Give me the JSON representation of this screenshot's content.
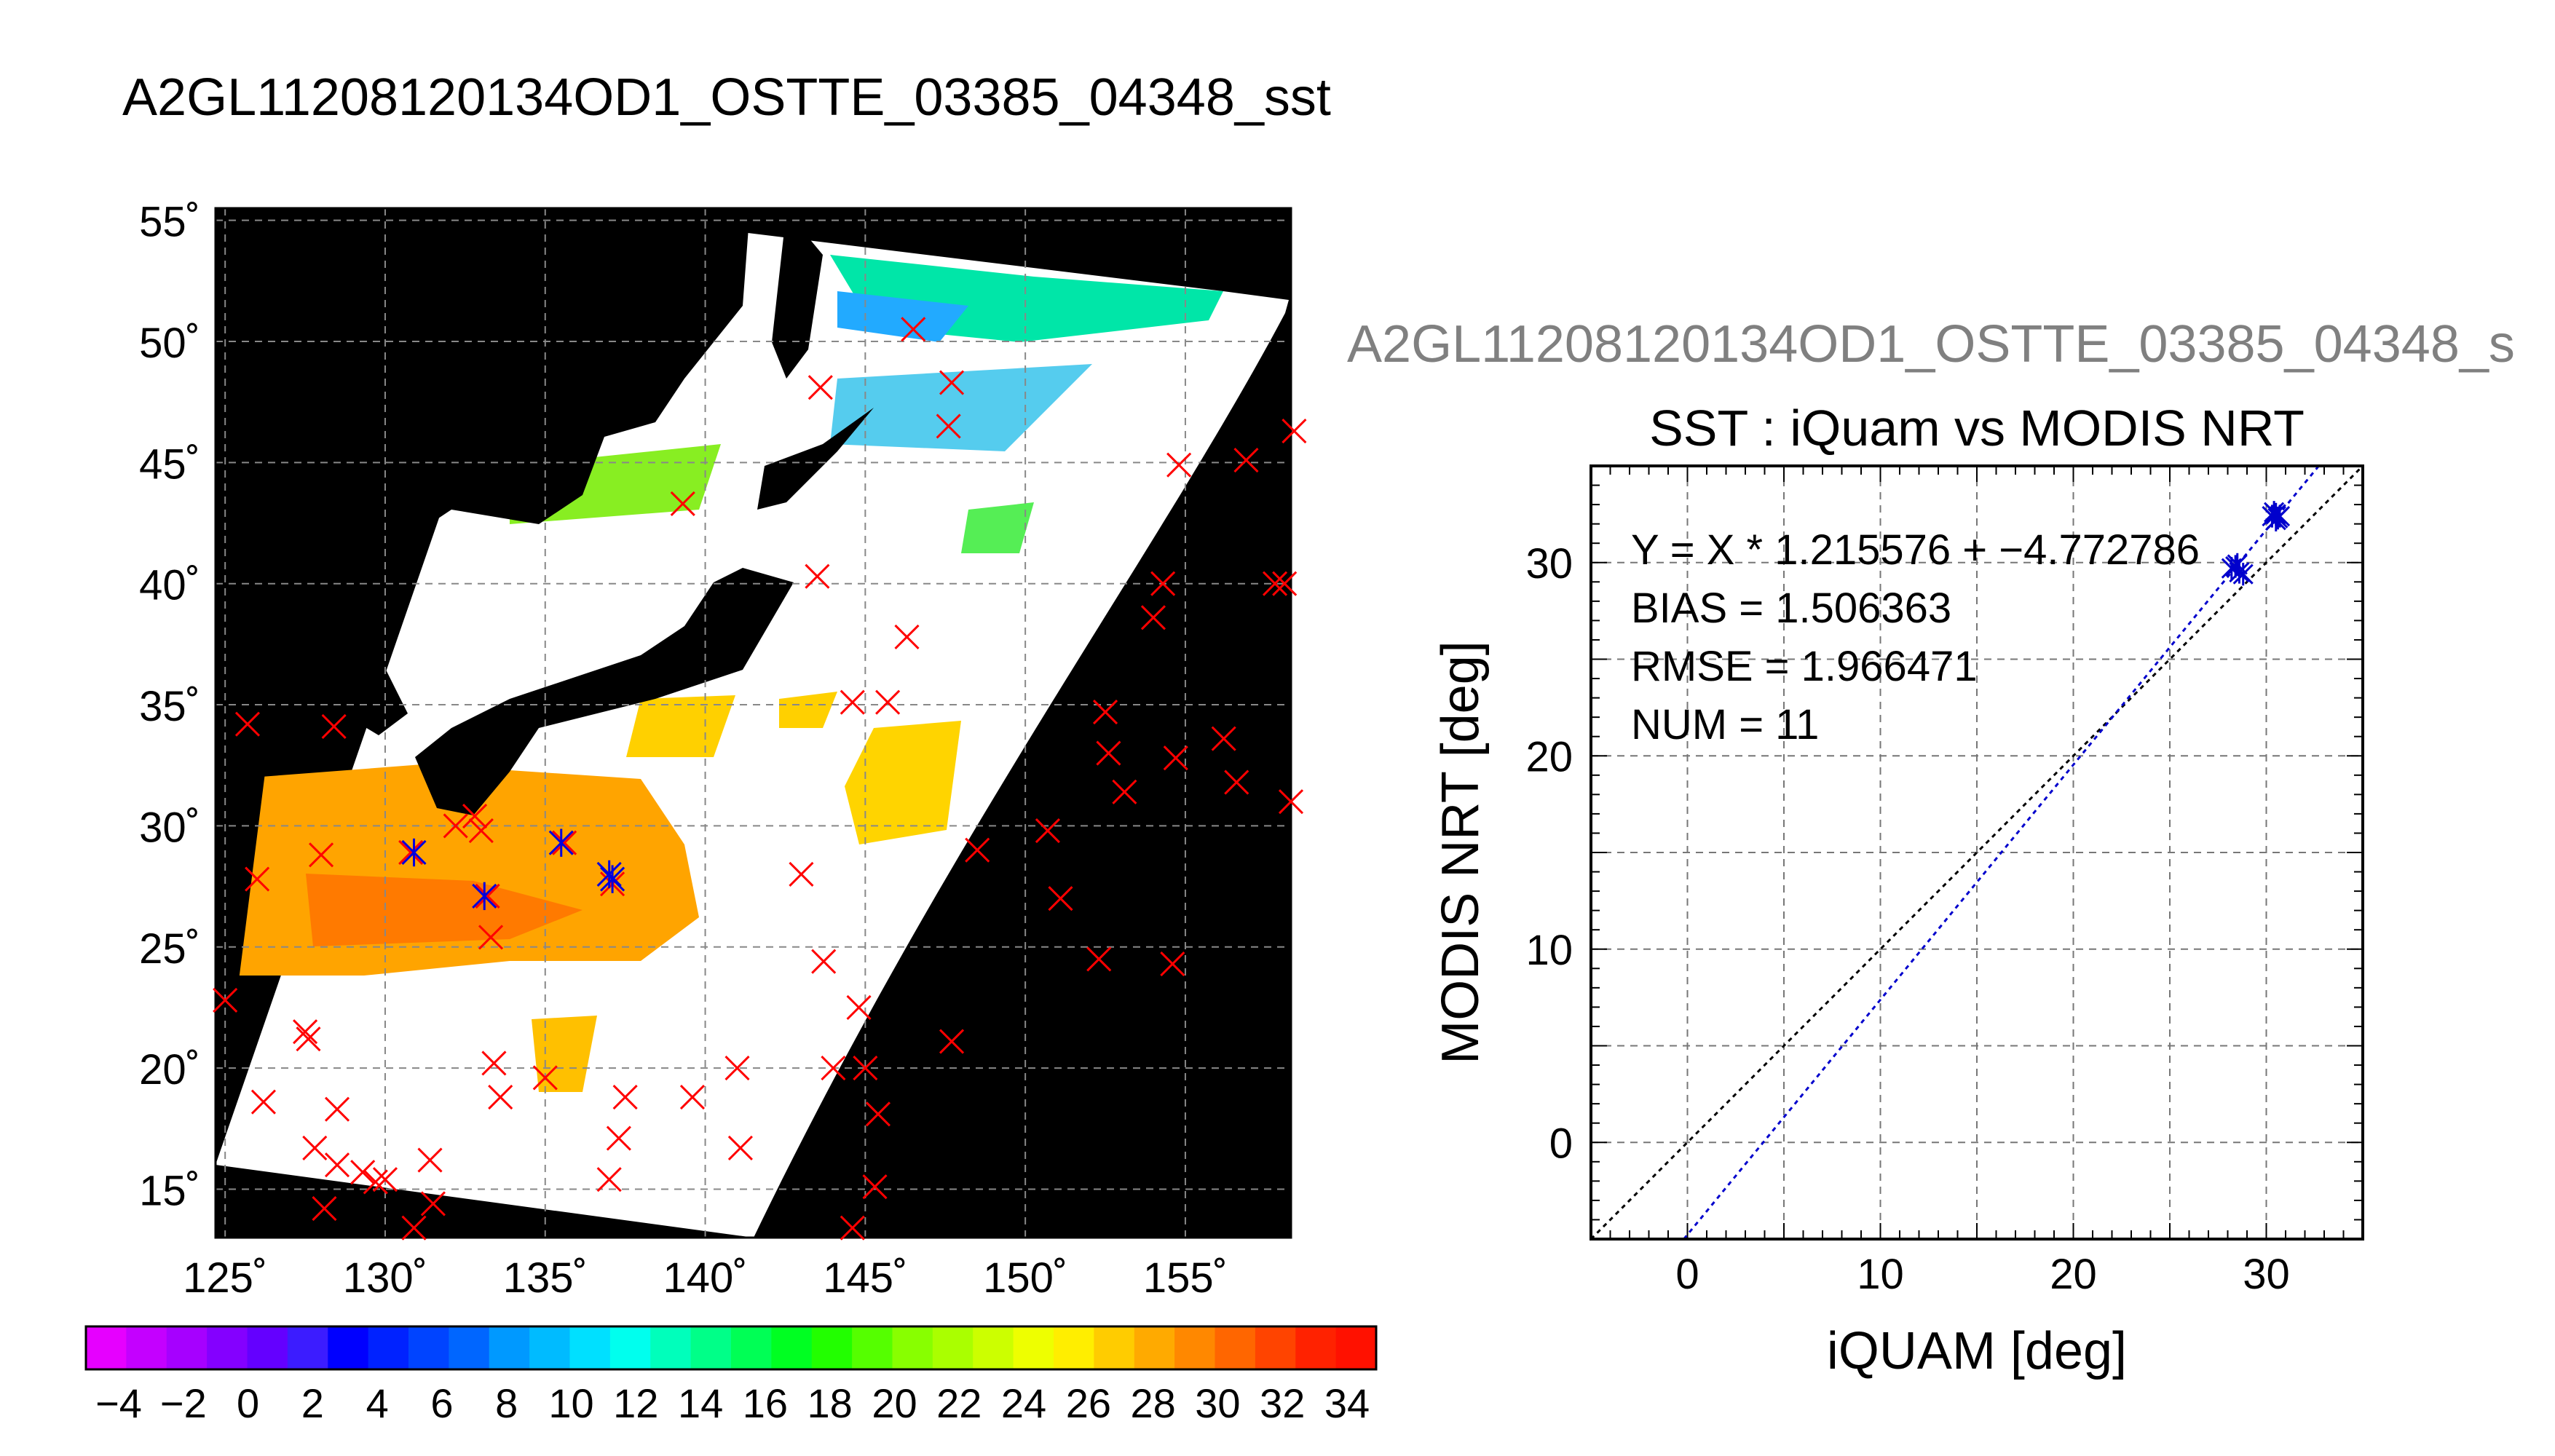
{
  "page_title": "A2GL11208120134OD1_OSTTE_03385_04348_sst",
  "map": {
    "lat_labels": [
      "55˚",
      "50˚",
      "45˚",
      "40˚",
      "35˚",
      "30˚",
      "25˚",
      "20˚",
      "15˚"
    ],
    "lon_labels": [
      "125˚",
      "130˚",
      "135˚",
      "140˚",
      "145˚",
      "150˚",
      "155˚"
    ],
    "lat_values": [
      55,
      50,
      45,
      40,
      35,
      30,
      25,
      20,
      15
    ],
    "lon_values": [
      125,
      130,
      135,
      140,
      145,
      150,
      155
    ],
    "lon_range": [
      124.7,
      158.3
    ],
    "lat_range": [
      13.0,
      55.5
    ],
    "red_marker_color": "#ff0000",
    "blue_marker_color": "#0000dd",
    "red_markers": [
      [
        125.7,
        34.2
      ],
      [
        126.0,
        27.8
      ],
      [
        125.0,
        22.8
      ],
      [
        126.2,
        18.6
      ],
      [
        127.5,
        21.5
      ],
      [
        127.6,
        21.2
      ],
      [
        128.4,
        34.1
      ],
      [
        128.0,
        28.8
      ],
      [
        128.5,
        18.3
      ],
      [
        127.8,
        16.7
      ],
      [
        128.5,
        16.0
      ],
      [
        128.1,
        14.2
      ],
      [
        129.3,
        15.7
      ],
      [
        129.7,
        15.3
      ],
      [
        130.0,
        15.4
      ],
      [
        130.9,
        13.4
      ],
      [
        131.4,
        16.2
      ],
      [
        131.5,
        14.4
      ],
      [
        130.8,
        28.9
      ],
      [
        132.2,
        30.0
      ],
      [
        132.8,
        30.4
      ],
      [
        133.0,
        29.8
      ],
      [
        133.2,
        27.1
      ],
      [
        133.3,
        25.4
      ],
      [
        133.4,
        20.2
      ],
      [
        133.6,
        18.8
      ],
      [
        135.0,
        19.6
      ],
      [
        135.6,
        29.3
      ],
      [
        137.1,
        27.6
      ],
      [
        137.0,
        15.4
      ],
      [
        137.3,
        17.1
      ],
      [
        137.5,
        18.8
      ],
      [
        139.6,
        18.8
      ],
      [
        141.0,
        20.0
      ],
      [
        141.1,
        16.7
      ],
      [
        139.3,
        43.3
      ],
      [
        143.5,
        40.3
      ],
      [
        143.0,
        28.0
      ],
      [
        143.7,
        24.4
      ],
      [
        144.8,
        22.5
      ],
      [
        144.0,
        20.0
      ],
      [
        145.0,
        20.0
      ],
      [
        145.4,
        18.1
      ],
      [
        145.3,
        15.1
      ],
      [
        144.6,
        13.4
      ],
      [
        144.6,
        35.1
      ],
      [
        145.7,
        35.1
      ],
      [
        146.3,
        37.8
      ],
      [
        146.5,
        50.5
      ],
      [
        143.6,
        48.1
      ],
      [
        147.7,
        48.3
      ],
      [
        147.6,
        46.5
      ],
      [
        148.5,
        29.0
      ],
      [
        147.7,
        21.1
      ],
      [
        150.7,
        29.8
      ],
      [
        151.1,
        27.0
      ],
      [
        152.3,
        24.5
      ],
      [
        152.5,
        34.7
      ],
      [
        152.6,
        33.0
      ],
      [
        153.1,
        31.4
      ],
      [
        154.7,
        32.8
      ],
      [
        154.0,
        38.6
      ],
      [
        154.3,
        40.0
      ],
      [
        154.8,
        44.9
      ],
      [
        154.6,
        24.3
      ],
      [
        156.2,
        33.6
      ],
      [
        156.6,
        31.8
      ],
      [
        156.9,
        45.1
      ],
      [
        157.8,
        40.0
      ],
      [
        158.1,
        40.0
      ],
      [
        158.4,
        46.3
      ],
      [
        158.3,
        31.0
      ]
    ],
    "blue_markers": [
      [
        130.9,
        28.9
      ],
      [
        133.1,
        27.1
      ],
      [
        135.5,
        29.3
      ],
      [
        137.0,
        28.0
      ],
      [
        137.1,
        27.8
      ]
    ]
  },
  "colorbar": {
    "tick_labels": [
      "−4",
      "−2",
      "0",
      "2",
      "4",
      "6",
      "8",
      "10",
      "12",
      "14",
      "16",
      "18",
      "20",
      "22",
      "24",
      "26",
      "28",
      "30",
      "32",
      "34"
    ],
    "colors": [
      "#e600ff",
      "#c400ff",
      "#a600ff",
      "#8400ff",
      "#6400ff",
      "#3c1cff",
      "#0000ff",
      "#0022ff",
      "#0044ff",
      "#0066ff",
      "#0099ff",
      "#00bbff",
      "#00e0ff",
      "#00ffee",
      "#00ffbb",
      "#00ff88",
      "#00ff55",
      "#00ff22",
      "#22ff00",
      "#55ff00",
      "#88ff00",
      "#aaff00",
      "#ccff00",
      "#eeff00",
      "#ffee00",
      "#ffcc00",
      "#ffaa00",
      "#ff8800",
      "#ff6600",
      "#ff4400",
      "#ff2200",
      "#ff1100"
    ]
  },
  "chart_data": {
    "type": "scatter",
    "subtitle": "A2GL11208120134OD1_OSTTE_03385_04348_s",
    "title": "SST : iQuam vs MODIS NRT",
    "xlabel": "iQUAM [deg]",
    "ylabel": "MODIS NRT [deg]",
    "xlim": [
      -5,
      35
    ],
    "ylim": [
      -5,
      35
    ],
    "x_ticks": [
      0,
      10,
      20,
      30
    ],
    "y_ticks": [
      0,
      10,
      20,
      30
    ],
    "grid": true,
    "annotations": [
      "Y = X * 1.215576 + −4.772786",
      "BIAS = 1.506363",
      "RMSE = 1.966471",
      "NUM = 11"
    ],
    "regression": {
      "slope": 1.215576,
      "intercept": -4.772786,
      "color": "#0000cc"
    },
    "identity_line_color": "#000000",
    "points": [
      {
        "x": 30.3,
        "y": 32.4
      },
      {
        "x": 30.5,
        "y": 32.5
      },
      {
        "x": 30.6,
        "y": 32.3
      },
      {
        "x": 30.4,
        "y": 32.6
      },
      {
        "x": 30.7,
        "y": 32.4
      },
      {
        "x": 30.5,
        "y": 32.2
      },
      {
        "x": 28.4,
        "y": 29.8
      },
      {
        "x": 28.6,
        "y": 29.5
      },
      {
        "x": 28.2,
        "y": 29.7
      },
      {
        "x": 28.8,
        "y": 29.4
      },
      {
        "x": 28.5,
        "y": 29.9
      }
    ]
  }
}
